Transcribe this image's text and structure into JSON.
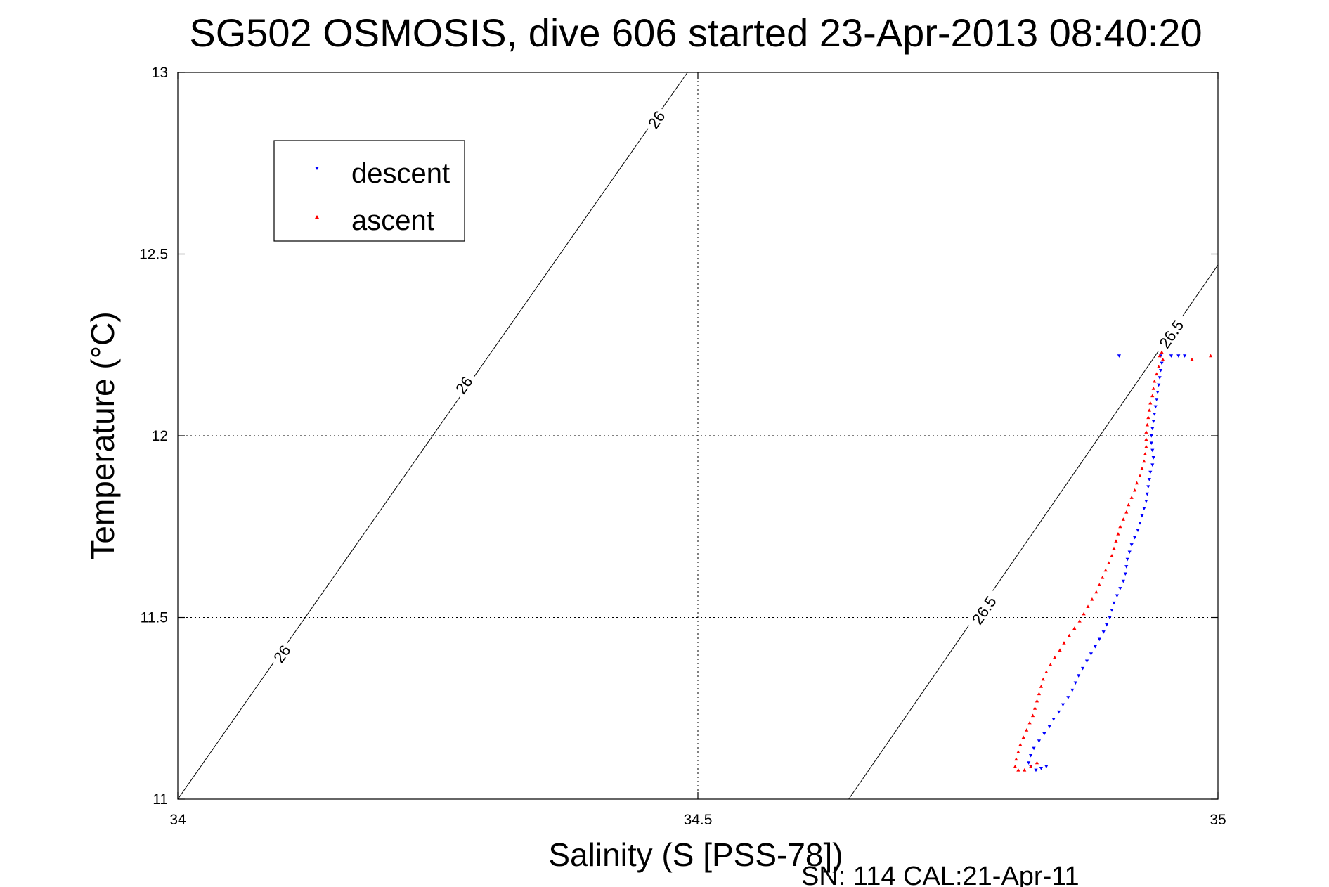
{
  "chart_data": {
    "type": "scatter",
    "title": "SG502 OSMOSIS, dive 606 started 23-Apr-2013 08:40:20",
    "xlabel": "Salinity (S [PSS-78])",
    "ylabel": "Temperature (°C)",
    "xlim": [
      34,
      35
    ],
    "ylim": [
      11,
      13
    ],
    "xticks": [
      "34",
      "34.5",
      "35"
    ],
    "yticks": [
      "11",
      "11.5",
      "12",
      "12.5",
      "13"
    ],
    "grid": true,
    "legend_position": "top-left",
    "footer_note": "SN: 114  CAL:21-Apr-11",
    "isopycnals": [
      {
        "label": "26",
        "points": [
          [
            34.0,
            11.0
          ],
          [
            34.49,
            13.0
          ]
        ],
        "label_positions": [
          [
            34.1,
            11.4
          ],
          [
            34.275,
            12.14
          ],
          [
            34.46,
            12.87
          ]
        ]
      },
      {
        "label": "26.5",
        "points": [
          [
            34.645,
            11.0
          ],
          [
            35.0,
            12.47
          ]
        ],
        "label_positions": [
          [
            34.775,
            11.52
          ],
          [
            34.955,
            12.28
          ]
        ]
      }
    ],
    "series": [
      {
        "name": "descent",
        "color": "#0000ff",
        "marker": "triangle-down",
        "points": [
          [
            34.905,
            12.22
          ],
          [
            34.945,
            12.22
          ],
          [
            34.955,
            12.22
          ],
          [
            34.962,
            12.22
          ],
          [
            34.968,
            12.22
          ],
          [
            34.946,
            12.2
          ],
          [
            34.945,
            12.18
          ],
          [
            34.944,
            12.16
          ],
          [
            34.943,
            12.14
          ],
          [
            34.942,
            12.12
          ],
          [
            34.941,
            12.1
          ],
          [
            34.94,
            12.08
          ],
          [
            34.939,
            12.06
          ],
          [
            34.938,
            12.04
          ],
          [
            34.937,
            12.02
          ],
          [
            34.936,
            12.0
          ],
          [
            34.936,
            11.98
          ],
          [
            34.937,
            11.96
          ],
          [
            34.938,
            11.94
          ],
          [
            34.937,
            11.92
          ],
          [
            34.935,
            11.9
          ],
          [
            34.934,
            11.88
          ],
          [
            34.933,
            11.86
          ],
          [
            34.932,
            11.84
          ],
          [
            34.931,
            11.82
          ],
          [
            34.929,
            11.8
          ],
          [
            34.927,
            11.78
          ],
          [
            34.925,
            11.76
          ],
          [
            34.923,
            11.74
          ],
          [
            34.92,
            11.72
          ],
          [
            34.917,
            11.7
          ],
          [
            34.915,
            11.68
          ],
          [
            34.913,
            11.66
          ],
          [
            34.912,
            11.64
          ],
          [
            34.911,
            11.62
          ],
          [
            34.909,
            11.6
          ],
          [
            34.906,
            11.58
          ],
          [
            34.903,
            11.56
          ],
          [
            34.9,
            11.54
          ],
          [
            34.898,
            11.52
          ],
          [
            34.896,
            11.5
          ],
          [
            34.893,
            11.48
          ],
          [
            34.89,
            11.46
          ],
          [
            34.886,
            11.44
          ],
          [
            34.882,
            11.42
          ],
          [
            34.878,
            11.4
          ],
          [
            34.874,
            11.38
          ],
          [
            34.87,
            11.36
          ],
          [
            34.866,
            11.34
          ],
          [
            34.863,
            11.32
          ],
          [
            34.86,
            11.3
          ],
          [
            34.856,
            11.28
          ],
          [
            34.851,
            11.26
          ],
          [
            34.847,
            11.24
          ],
          [
            34.842,
            11.22
          ],
          [
            34.838,
            11.2
          ],
          [
            34.833,
            11.18
          ],
          [
            34.828,
            11.16
          ],
          [
            34.823,
            11.14
          ],
          [
            34.82,
            11.12
          ],
          [
            34.818,
            11.1
          ],
          [
            34.82,
            11.09
          ],
          [
            34.825,
            11.08
          ],
          [
            34.83,
            11.085
          ],
          [
            34.835,
            11.09
          ]
        ]
      },
      {
        "name": "ascent",
        "color": "#ff0000",
        "marker": "triangle-up",
        "points": [
          [
            34.993,
            12.22
          ],
          [
            34.975,
            12.21
          ],
          [
            34.944,
            12.22
          ],
          [
            34.946,
            12.23
          ],
          [
            34.947,
            12.21
          ],
          [
            34.943,
            12.19
          ],
          [
            34.941,
            12.17
          ],
          [
            34.939,
            12.15
          ],
          [
            34.938,
            12.13
          ],
          [
            34.937,
            12.11
          ],
          [
            34.935,
            12.09
          ],
          [
            34.934,
            12.07
          ],
          [
            34.933,
            12.05
          ],
          [
            34.932,
            12.03
          ],
          [
            34.931,
            12.01
          ],
          [
            34.931,
            11.99
          ],
          [
            34.931,
            11.97
          ],
          [
            34.93,
            11.95
          ],
          [
            34.929,
            11.93
          ],
          [
            34.927,
            11.91
          ],
          [
            34.925,
            11.89
          ],
          [
            34.922,
            11.87
          ],
          [
            34.92,
            11.85
          ],
          [
            34.917,
            11.83
          ],
          [
            34.914,
            11.81
          ],
          [
            34.912,
            11.79
          ],
          [
            34.909,
            11.77
          ],
          [
            34.906,
            11.75
          ],
          [
            34.904,
            11.73
          ],
          [
            34.902,
            11.71
          ],
          [
            34.9,
            11.69
          ],
          [
            34.898,
            11.67
          ],
          [
            34.895,
            11.65
          ],
          [
            34.892,
            11.63
          ],
          [
            34.889,
            11.61
          ],
          [
            34.886,
            11.59
          ],
          [
            34.883,
            11.57
          ],
          [
            34.879,
            11.55
          ],
          [
            34.875,
            11.53
          ],
          [
            34.871,
            11.51
          ],
          [
            34.867,
            11.49
          ],
          [
            34.862,
            11.47
          ],
          [
            34.857,
            11.45
          ],
          [
            34.852,
            11.43
          ],
          [
            34.848,
            11.41
          ],
          [
            34.843,
            11.39
          ],
          [
            34.839,
            11.37
          ],
          [
            34.835,
            11.35
          ],
          [
            34.832,
            11.33
          ],
          [
            34.83,
            11.31
          ],
          [
            34.828,
            11.29
          ],
          [
            34.826,
            11.27
          ],
          [
            34.824,
            11.25
          ],
          [
            34.822,
            11.23
          ],
          [
            34.819,
            11.21
          ],
          [
            34.816,
            11.19
          ],
          [
            34.813,
            11.17
          ],
          [
            34.81,
            11.15
          ],
          [
            34.808,
            11.13
          ],
          [
            34.806,
            11.11
          ],
          [
            34.805,
            11.09
          ],
          [
            34.808,
            11.08
          ],
          [
            34.814,
            11.08
          ],
          [
            34.82,
            11.09
          ],
          [
            34.826,
            11.1
          ]
        ]
      }
    ]
  }
}
